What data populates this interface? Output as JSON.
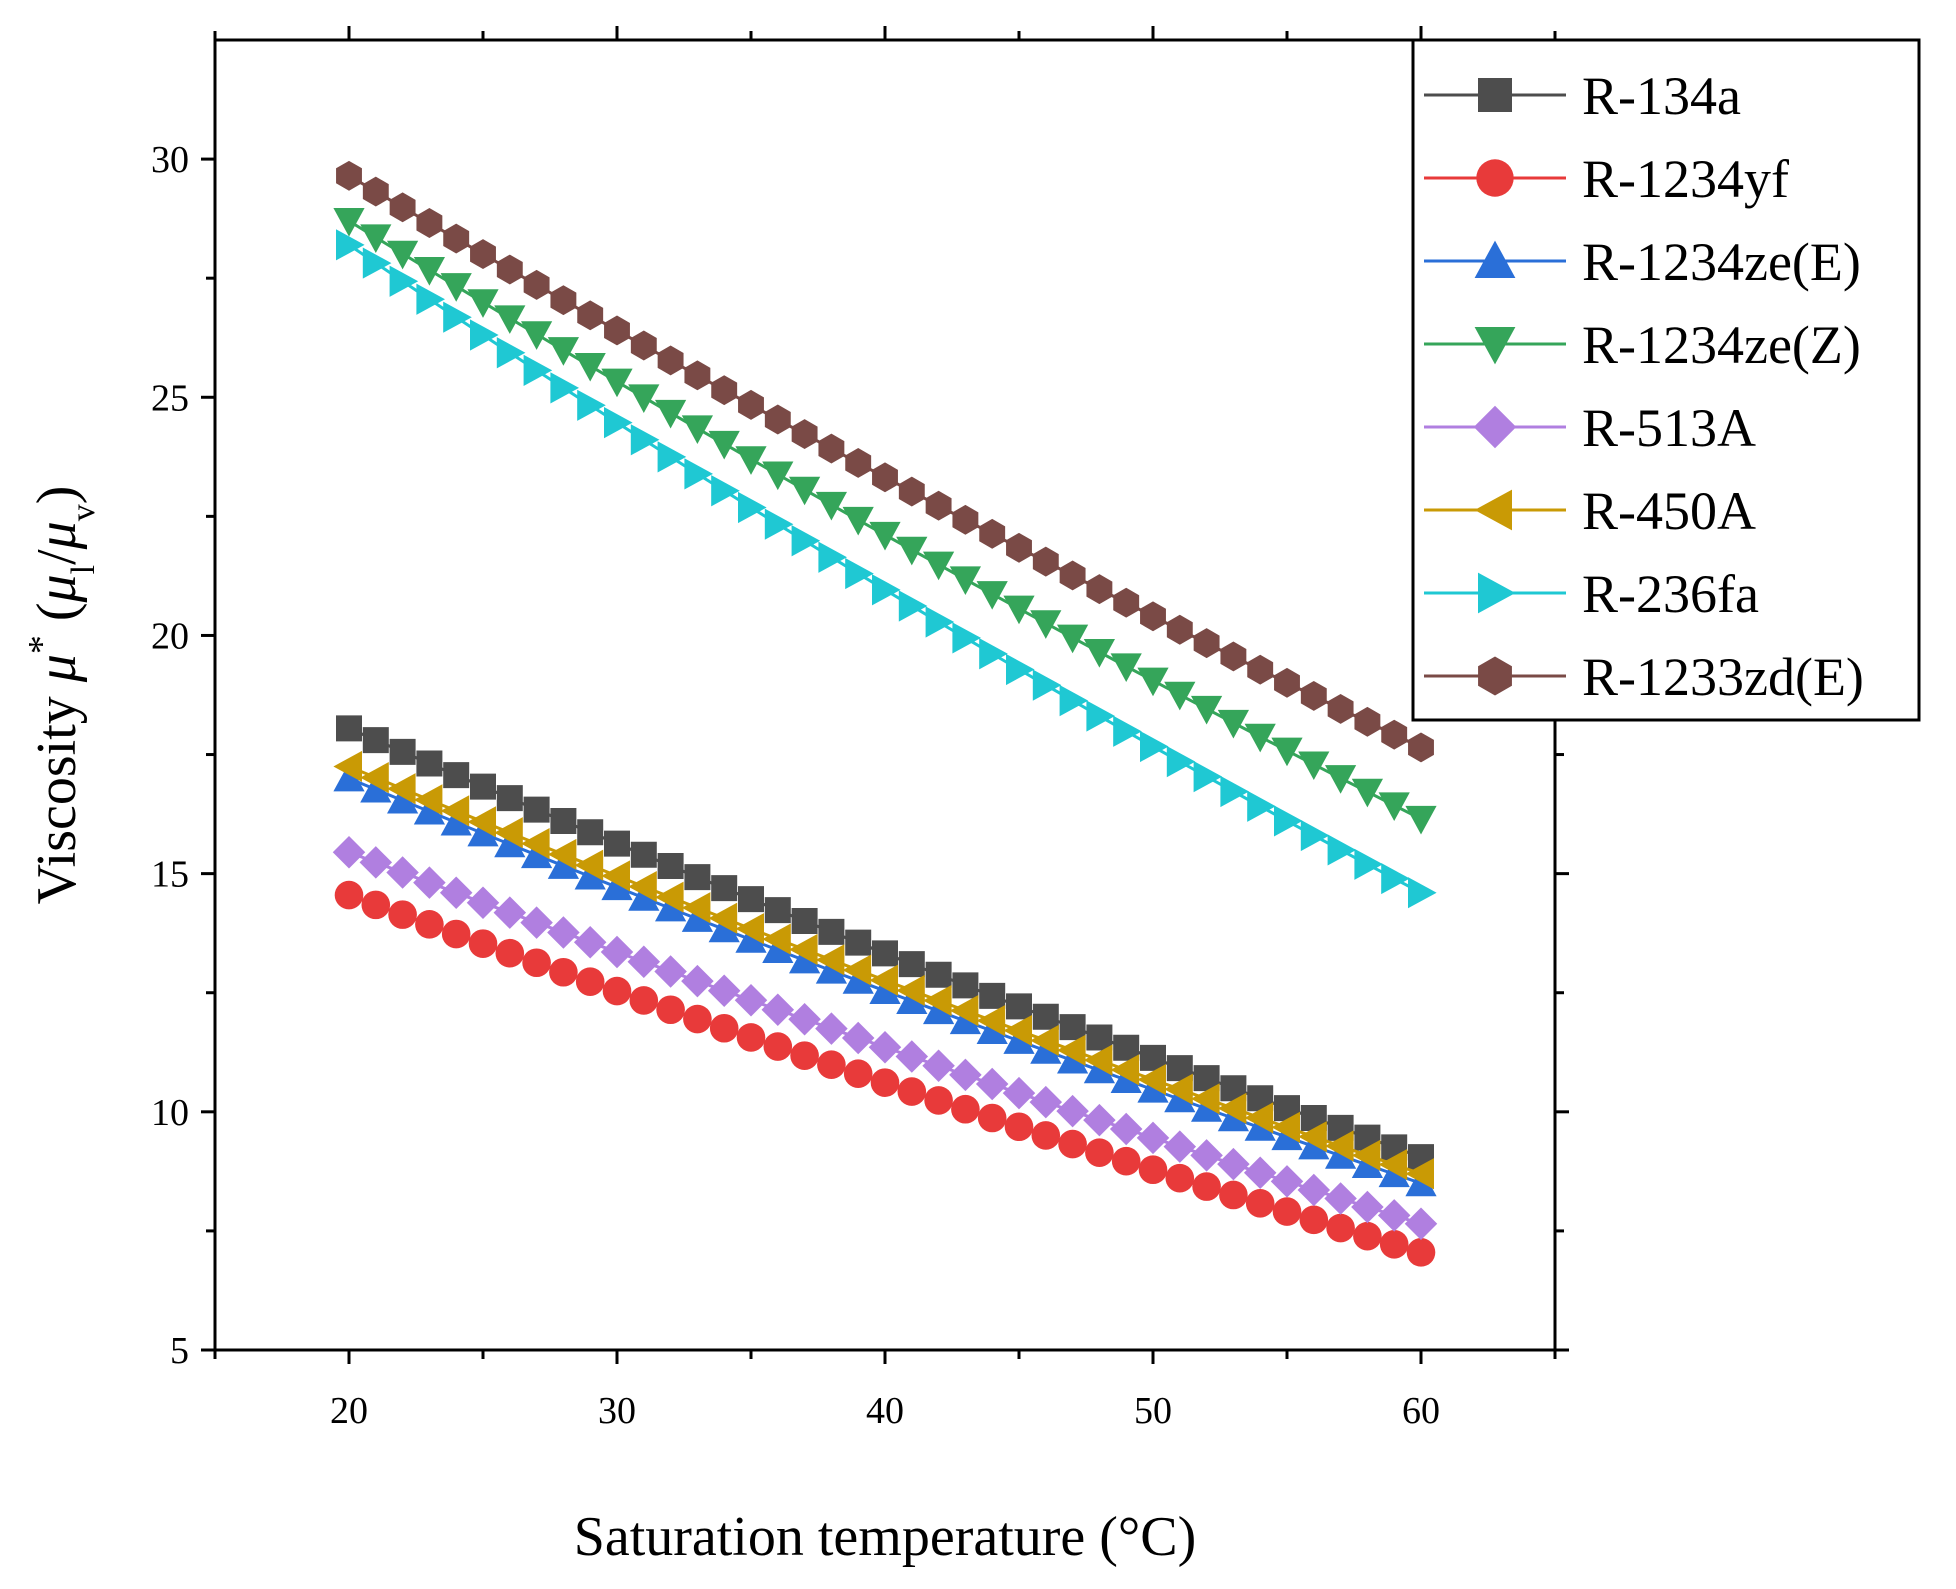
{
  "chart_data": {
    "type": "line",
    "title": "",
    "xlabel": "Saturation temperature (°C)",
    "ylabel_parts": {
      "prefix": "Viscosity ",
      "mu": "μ",
      "star": "*",
      "open": " (",
      "sub_l": "l",
      "slash": "/",
      "sub_v": "v",
      "close": ")"
    },
    "xlim": [
      15,
      65
    ],
    "ylim": [
      5,
      32.5
    ],
    "xticks": [
      20,
      30,
      40,
      50,
      60
    ],
    "yticks": [
      5,
      10,
      15,
      20,
      25,
      30
    ],
    "x_start": 20,
    "x_end": 60,
    "x_step": 1,
    "legend_position": "top-right",
    "series": [
      {
        "name": "R-134a",
        "color": "#4d4d4d",
        "marker": "square",
        "start": 18.05,
        "end": 9.05,
        "shape": 0.1
      },
      {
        "name": "R-1234yf",
        "color": "#e83a3a",
        "marker": "circle",
        "start": 14.55,
        "end": 7.05,
        "shape": 0.1
      },
      {
        "name": "R-1234ze(E)",
        "color": "#2a6fd8",
        "marker": "triangle-up",
        "start": 17.0,
        "end": 8.5,
        "shape": 0.1
      },
      {
        "name": "R-1234ze(Z)",
        "color": "#35a55a",
        "marker": "triangle-down",
        "start": 28.7,
        "end": 16.15,
        "shape": 0.1
      },
      {
        "name": "R-513A",
        "color": "#b07fe0",
        "marker": "diamond",
        "start": 15.45,
        "end": 7.65,
        "shape": 0.1
      },
      {
        "name": "R-450A",
        "color": "#c99a05",
        "marker": "triangle-left",
        "start": 17.25,
        "end": 8.7,
        "shape": 0.1
      },
      {
        "name": "R-236fa",
        "color": "#1fc8d3",
        "marker": "triangle-right",
        "start": 28.2,
        "end": 14.6,
        "shape": 0.13
      },
      {
        "name": "R-1233zd(E)",
        "color": "#7a4a46",
        "marker": "hexagon",
        "start": 29.65,
        "end": 17.65,
        "shape": 0.11
      }
    ]
  }
}
